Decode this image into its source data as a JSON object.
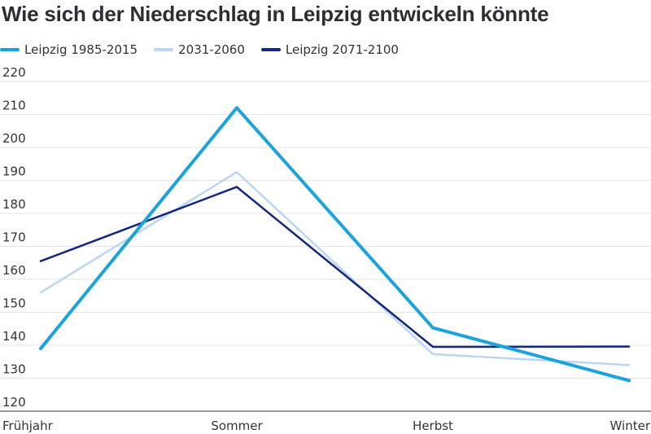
{
  "chart_data": {
    "type": "line",
    "title": "Wie sich der Niederschlag in Leipzig entwickeln könnte",
    "categories": [
      "Frühjahr",
      "Sommer",
      "Herbst",
      "Winter"
    ],
    "series": [
      {
        "name": "Leipzig 1985-2015",
        "values": [
          139,
          212,
          145.3,
          129.3
        ],
        "color": "#1aa3dc"
      },
      {
        "name": "2031-2060",
        "values": [
          156,
          192.5,
          137.3,
          134
        ],
        "color": "#b9d7f4"
      },
      {
        "name": "Leipzig 2071-2100",
        "values": [
          165.5,
          188,
          139.5,
          139.6
        ],
        "color": "#14287f"
      }
    ],
    "ylim": [
      120,
      220
    ],
    "yticks": [
      120,
      130,
      140,
      150,
      160,
      170,
      180,
      190,
      200,
      210,
      220
    ],
    "xlabel": "",
    "ylabel": "",
    "grid": true,
    "legend_position": "top-left"
  }
}
